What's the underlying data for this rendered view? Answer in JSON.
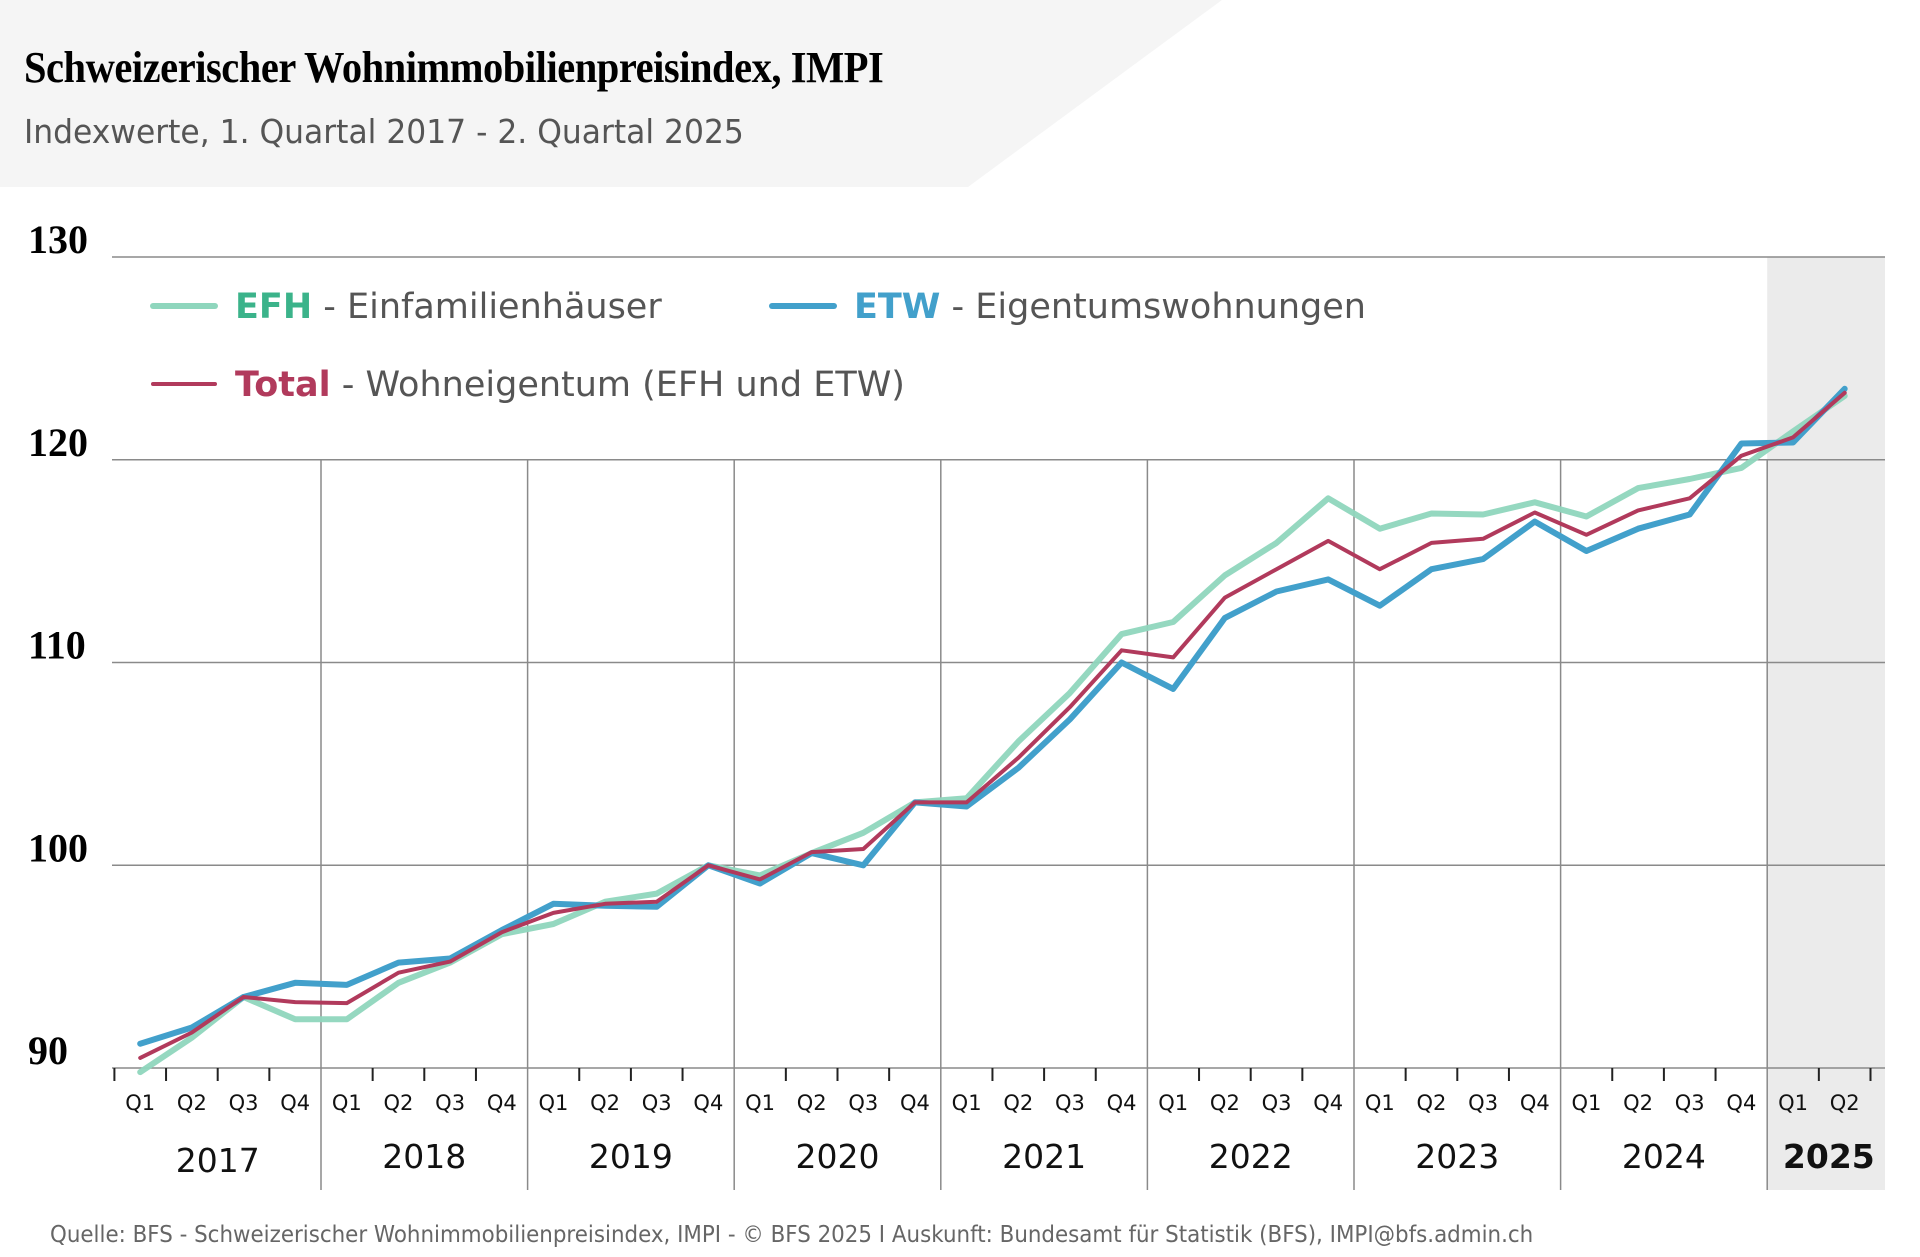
{
  "header": {
    "title": "Schweizerischer Wohnimmobilienpreisindex, IMPI",
    "subtitle": "Indexwerte, 1. Quartal 2017 - 2. Quartal 2025"
  },
  "footer": "Quelle: BFS - Schweizerischer Wohnimmobilienpreisindex, IMPI  - © BFS 2025 I Auskunft: Bundesamt für Statistik (BFS), IMPI@bfs.admin.ch",
  "colors": {
    "efh": "#8fd6bd",
    "efh_label": "#3bb38a",
    "etw": "#42a0cb",
    "total": "#b13a5c",
    "grid": "#8a8a8a",
    "highlight_band": "#ebebeb",
    "header_bg": "#f5f5f5"
  },
  "chart_data": {
    "type": "line",
    "title": "Schweizerischer Wohnimmobilienpreisindex, IMPI",
    "subtitle": "Indexwerte, 1. Quartal 2017 - 2. Quartal 2025",
    "xlabel": "",
    "ylabel": "",
    "ylim": [
      90,
      130
    ],
    "yticks": [
      90,
      100,
      110,
      120,
      130
    ],
    "grid": true,
    "legend_position": "top-left",
    "legend": [
      {
        "key": "EFH",
        "text": " - Einfamilienhäuser",
        "series": "EFH"
      },
      {
        "key": "ETW",
        "text": " - Eigentumswohnungen",
        "series": "ETW"
      },
      {
        "key": "Total",
        "text": " - Wohneigentum (EFH und ETW)",
        "series": "Total"
      }
    ],
    "years": [
      "2017",
      "2018",
      "2019",
      "2020",
      "2021",
      "2022",
      "2023",
      "2024",
      "2025"
    ],
    "highlight_year": "2025",
    "quarter_labels": [
      "Q1",
      "Q2",
      "Q3",
      "Q4"
    ],
    "x": [
      "2017-Q1",
      "2017-Q2",
      "2017-Q3",
      "2017-Q4",
      "2018-Q1",
      "2018-Q2",
      "2018-Q3",
      "2018-Q4",
      "2019-Q1",
      "2019-Q2",
      "2019-Q3",
      "2019-Q4",
      "2020-Q1",
      "2020-Q2",
      "2020-Q3",
      "2020-Q4",
      "2021-Q1",
      "2021-Q2",
      "2021-Q3",
      "2021-Q4",
      "2022-Q1",
      "2022-Q2",
      "2022-Q3",
      "2022-Q4",
      "2023-Q1",
      "2023-Q2",
      "2023-Q3",
      "2023-Q4",
      "2024-Q1",
      "2024-Q2",
      "2024-Q3",
      "2024-Q4",
      "2025-Q1",
      "2025-Q2"
    ],
    "series": [
      {
        "name": "EFH",
        "values": [
          89.8,
          91.5,
          93.5,
          92.4,
          92.4,
          94.2,
          95.2,
          96.6,
          97.1,
          98.2,
          98.6,
          100.0,
          99.5,
          100.6,
          101.6,
          103.1,
          103.3,
          106.1,
          108.5,
          111.4,
          112.0,
          114.3,
          115.9,
          118.1,
          116.6,
          117.35,
          117.3,
          117.9,
          117.2,
          118.6,
          119.05,
          119.6,
          121.4,
          123.15
        ]
      },
      {
        "name": "ETW",
        "values": [
          91.2,
          92.0,
          93.5,
          94.2,
          94.1,
          95.2,
          95.4,
          96.8,
          98.1,
          98.0,
          97.95,
          100.0,
          99.1,
          100.6,
          100.0,
          103.1,
          102.9,
          104.8,
          107.2,
          110.0,
          108.7,
          112.2,
          113.5,
          114.1,
          112.8,
          114.6,
          115.1,
          116.95,
          115.5,
          116.6,
          117.3,
          120.8,
          120.85,
          123.5
        ]
      },
      {
        "name": "Total",
        "values": [
          90.5,
          91.75,
          93.5,
          93.25,
          93.2,
          94.7,
          95.25,
          96.7,
          97.65,
          98.1,
          98.2,
          100.0,
          99.3,
          100.65,
          100.8,
          103.1,
          103.1,
          105.3,
          107.8,
          110.6,
          110.25,
          113.2,
          114.6,
          116.0,
          114.6,
          115.9,
          116.1,
          117.4,
          116.3,
          117.5,
          118.1,
          120.2,
          121.1,
          123.3
        ]
      }
    ]
  }
}
